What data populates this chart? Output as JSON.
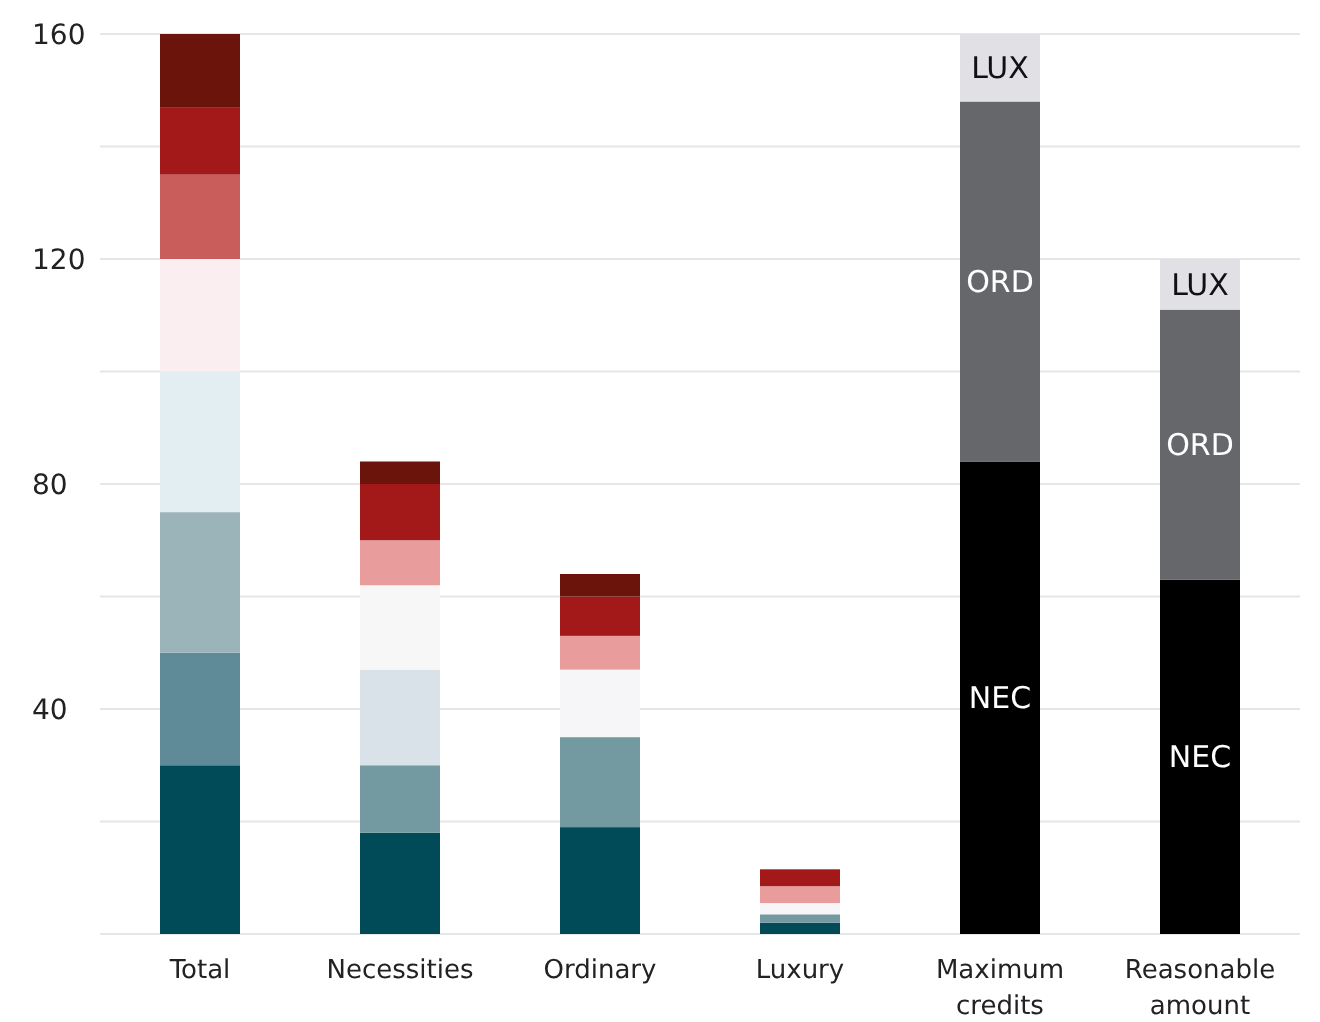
{
  "chart_data": {
    "type": "bar",
    "stacked": true,
    "categories": [
      "Total",
      "Necessities",
      "Ordinary",
      "Luxury",
      "Maximum credits",
      "Reasonable amount"
    ],
    "series": [
      {
        "colors": [
          "#004b57",
          "#004b57",
          "#004b57",
          "#004b57",
          null,
          null
        ],
        "values": [
          30,
          18,
          19,
          2,
          null,
          null
        ]
      },
      {
        "colors": [
          "#5f8a97",
          "#729aa0",
          "#729aa0",
          "#729aa0",
          null,
          null
        ],
        "values": [
          20,
          12,
          16,
          1.5,
          null,
          null
        ]
      },
      {
        "colors": [
          "#9bb4ba",
          "#d9e2e8",
          "#f6f6f8",
          "#f6f6f8",
          null,
          null
        ],
        "values": [
          25,
          17,
          12,
          2,
          null,
          null
        ]
      },
      {
        "colors": [
          "#e2eef1",
          "#f7f7f7",
          "#e89c9c",
          "#e89c9c",
          null,
          null
        ],
        "values": [
          25,
          15,
          6,
          3,
          null,
          null
        ]
      },
      {
        "colors": [
          "#fbeef0",
          "#e89c9c",
          "#a31818",
          "#a31818",
          null,
          null
        ],
        "values": [
          20,
          8,
          7,
          3,
          null,
          null
        ]
      },
      {
        "colors": [
          "#c85d5b",
          "#a31818",
          "#6b140c",
          null,
          null,
          null
        ],
        "values": [
          15,
          10,
          4,
          null,
          null,
          null
        ]
      },
      {
        "colors": [
          "#a31818",
          "#6b140c",
          null,
          null,
          null,
          null
        ],
        "values": [
          12,
          4,
          null,
          null,
          null,
          null
        ]
      },
      {
        "colors": [
          "#6b140c",
          null,
          null,
          null,
          null,
          null
        ],
        "values": [
          13,
          null,
          null,
          null,
          null,
          null
        ]
      },
      {
        "name": "NEC",
        "color": "#000000",
        "values": [
          null,
          null,
          null,
          null,
          84,
          63
        ]
      },
      {
        "name": "ORD",
        "color": "#65676b",
        "values": [
          null,
          null,
          null,
          null,
          64,
          48
        ]
      },
      {
        "name": "LUX",
        "color": "#e1e1e5",
        "values": [
          null,
          null,
          null,
          null,
          12,
          9
        ]
      }
    ],
    "ylim": [
      0,
      160
    ],
    "yticks": [
      {
        "value": 0,
        "label": null
      },
      {
        "value": 20,
        "label": null
      },
      40,
      {
        "value": 60,
        "label": null
      },
      80,
      {
        "value": 100,
        "label": null
      },
      120,
      {
        "value": 140,
        "label": null
      },
      160
    ],
    "grid": "y"
  }
}
